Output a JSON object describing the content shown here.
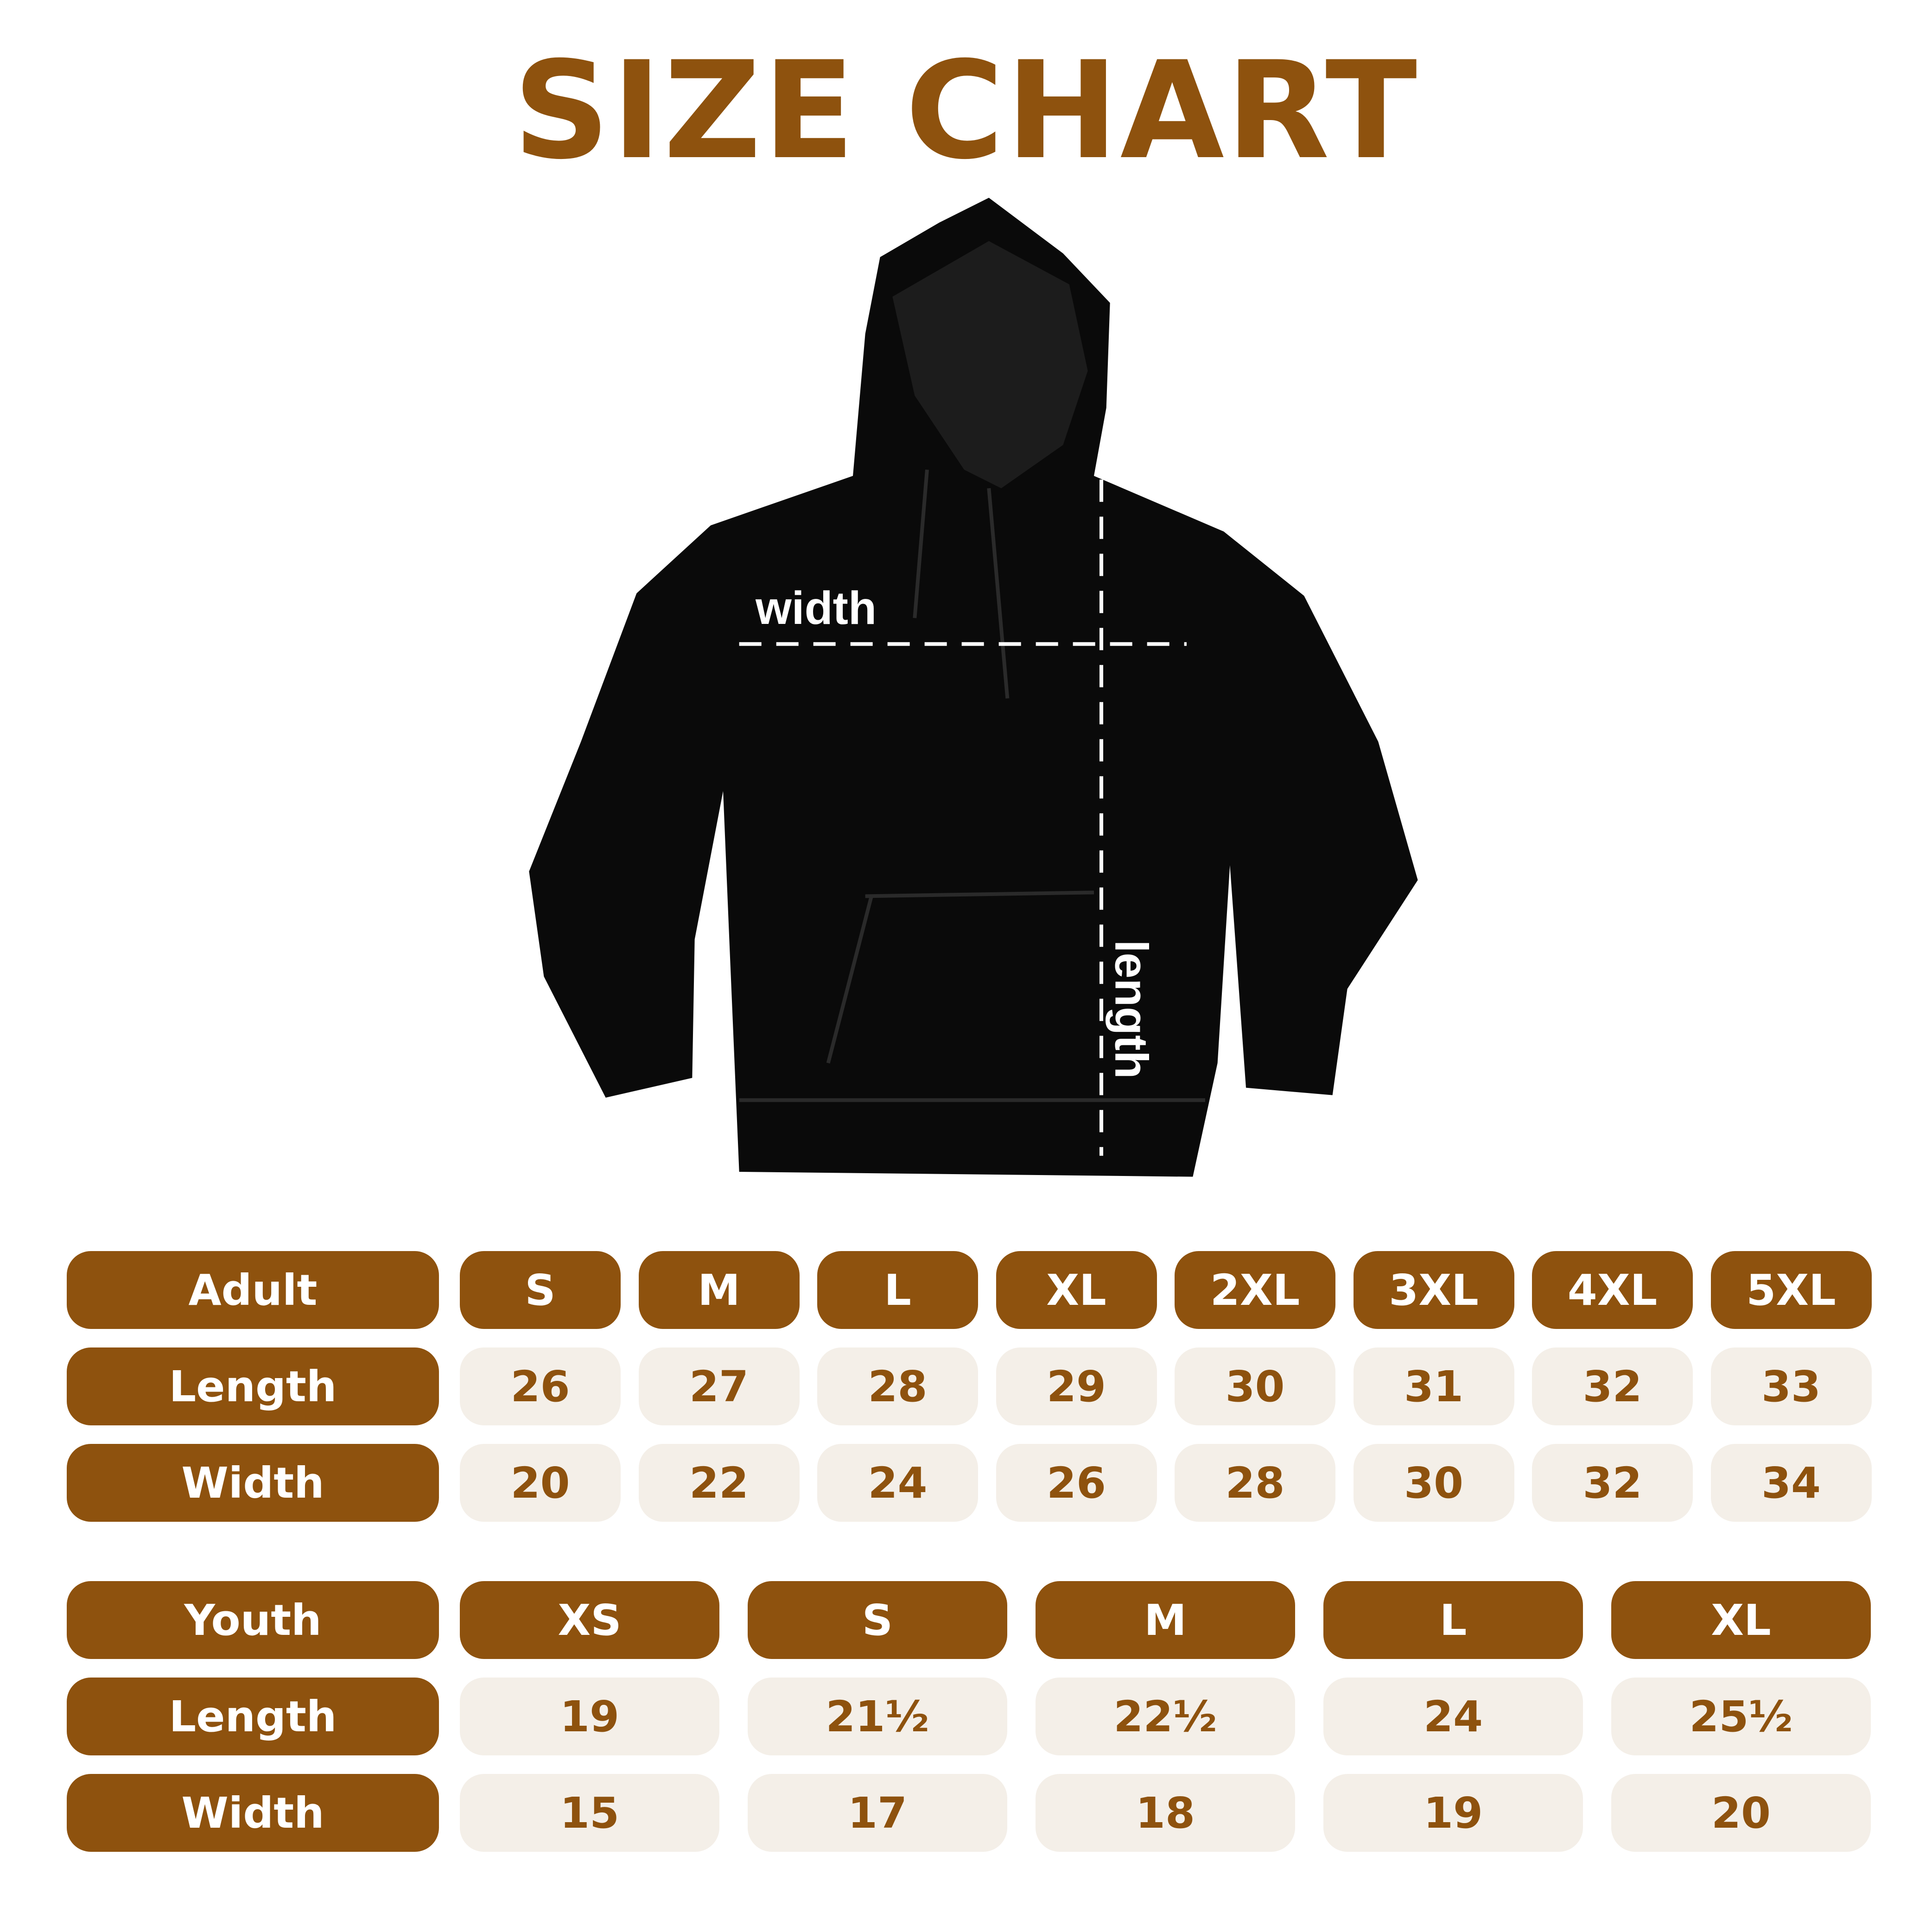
{
  "title": "SIZE CHART",
  "diagram": {
    "width_label": "width",
    "length_label": "length"
  },
  "colors": {
    "brand": "#8E520E",
    "cell_bg": "#F4EFE8",
    "garment": "#0a0a0a"
  },
  "adult": {
    "header": "Adult",
    "sizes": [
      "S",
      "M",
      "L",
      "XL",
      "2XL",
      "3XL",
      "4XL",
      "5XL"
    ],
    "rows": [
      {
        "label": "Length",
        "values": [
          "26",
          "27",
          "28",
          "29",
          "30",
          "31",
          "32",
          "33"
        ]
      },
      {
        "label": "Width",
        "values": [
          "20",
          "22",
          "24",
          "26",
          "28",
          "30",
          "32",
          "34"
        ]
      }
    ]
  },
  "youth": {
    "header": "Youth",
    "sizes": [
      "XS",
      "S",
      "M",
      "L",
      "XL"
    ],
    "rows": [
      {
        "label": "Length",
        "values": [
          "19",
          "21½",
          "22½",
          "24",
          "25½"
        ]
      },
      {
        "label": "Width",
        "values": [
          "15",
          "17",
          "18",
          "19",
          "20"
        ]
      }
    ]
  }
}
